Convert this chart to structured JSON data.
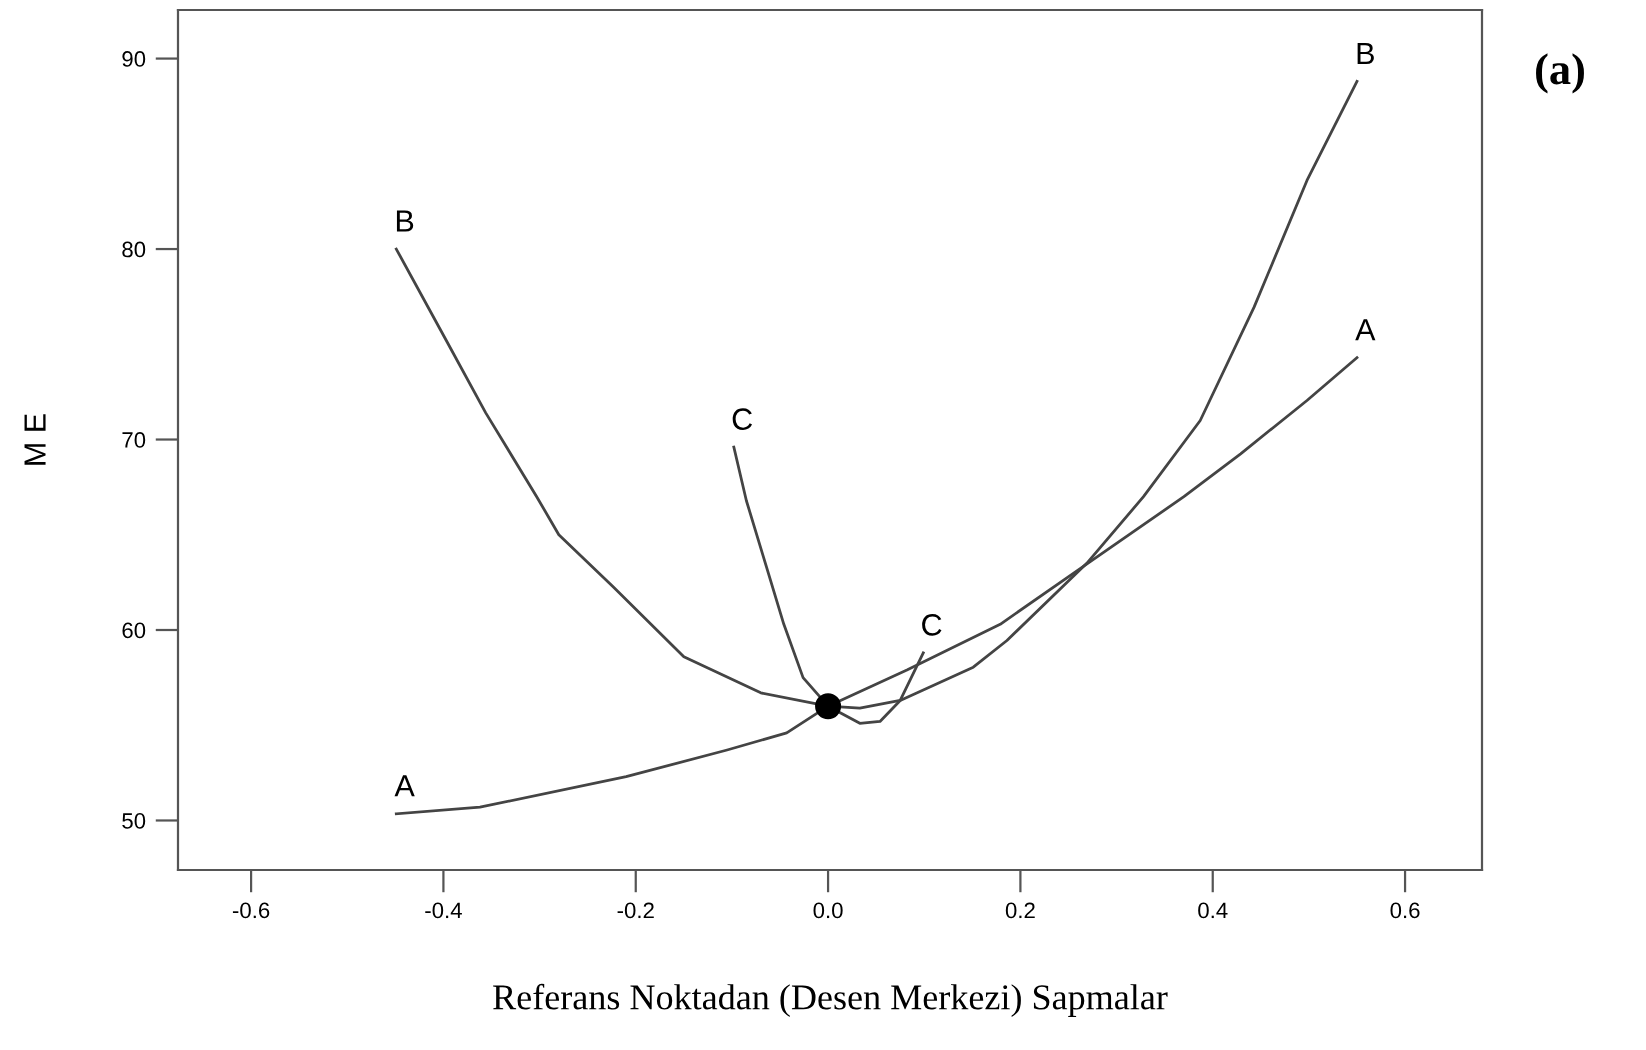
{
  "chart_data": {
    "type": "line",
    "xlabel": "Referans Noktadan (Desen Merkezi) Sapmalar",
    "ylabel": "M E",
    "xlim": [
      -0.676,
      0.68
    ],
    "ylim": [
      47.4,
      92.55
    ],
    "xticks": [
      {
        "value": -0.6,
        "label": "-0.6"
      },
      {
        "value": -0.4,
        "label": "-0.4"
      },
      {
        "value": -0.2,
        "label": "-0.2"
      },
      {
        "value": 0,
        "label": "0.0"
      },
      {
        "value": 0.2,
        "label": "0.2"
      },
      {
        "value": 0.4,
        "label": "0.4"
      },
      {
        "value": 0.6,
        "label": "0.6"
      }
    ],
    "yticks": [
      50,
      60,
      70,
      80,
      90
    ],
    "annotations": [
      "(a)"
    ],
    "series": [
      {
        "name": "A",
        "color": "#444444",
        "x": [
          -0.449,
          -0.362,
          -0.21,
          -0.105,
          -0.043,
          0,
          0.082,
          0.179,
          0.27,
          0.37,
          0.429,
          0.498,
          0.55
        ],
        "values": [
          50.35,
          50.7,
          52.3,
          53.7,
          54.6,
          56,
          57.9,
          60.3,
          63.5,
          67.0,
          69.25,
          72.05,
          74.3
        ]
      },
      {
        "name": "B",
        "color": "#444444",
        "x": [
          -0.449,
          -0.397,
          -0.356,
          -0.303,
          -0.28,
          -0.223,
          -0.15,
          -0.07,
          0,
          0.033,
          0.075,
          0.151,
          0.186,
          0.269,
          0.328,
          0.387,
          0.443,
          0.498,
          0.55
        ],
        "values": [
          80.0,
          75.2,
          71.4,
          67.0,
          65.0,
          62.25,
          58.6,
          56.7,
          56,
          55.9,
          56.3,
          58.05,
          59.45,
          63.5,
          67.0,
          71.0,
          76.95,
          83.6,
          88.8
        ]
      },
      {
        "name": "C",
        "color": "#444444",
        "x": [
          -0.098,
          -0.085,
          -0.064,
          -0.046,
          -0.026,
          0,
          0.033,
          0.054,
          0.075,
          0.099
        ],
        "values": [
          69.6,
          66.8,
          63.3,
          60.3,
          57.5,
          56,
          55.1,
          55.2,
          56.3,
          58.8
        ]
      },
      {
        "type": "scatter",
        "color": "#000000",
        "marker": "circle",
        "x": [
          0
        ],
        "values": [
          56
        ]
      }
    ]
  }
}
